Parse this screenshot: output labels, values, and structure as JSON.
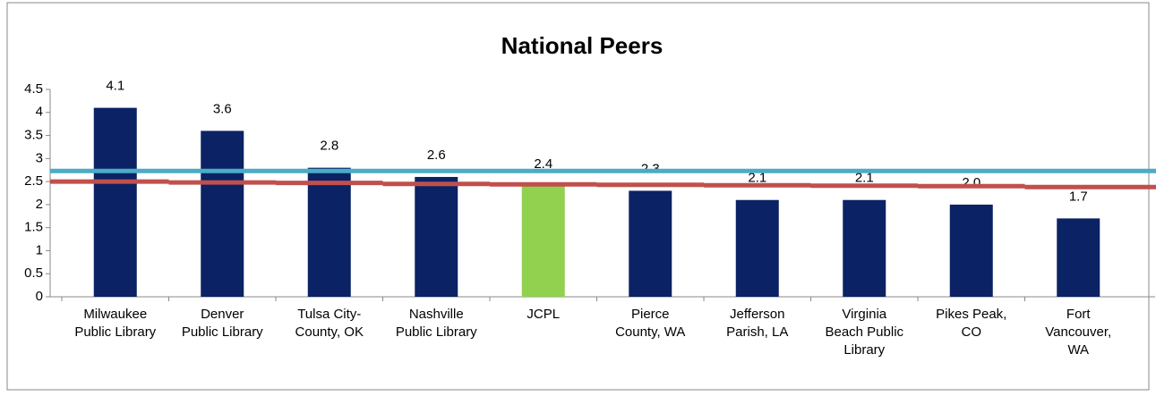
{
  "chart_data": {
    "type": "bar",
    "title": "National Peers",
    "categories": [
      [
        "Milwaukee",
        "Public Library"
      ],
      [
        "Denver",
        "Public Library"
      ],
      [
        "Tulsa City-",
        "County, OK"
      ],
      [
        "Nashville",
        "Public Library"
      ],
      [
        "JCPL"
      ],
      [
        "Pierce",
        "County, WA"
      ],
      [
        "Jefferson",
        "Parish, LA"
      ],
      [
        "Virginia",
        "Beach Public",
        "Library"
      ],
      [
        "Pikes Peak,",
        "CO"
      ],
      [
        "Fort",
        "Vancouver,",
        "WA"
      ]
    ],
    "values": [
      4.1,
      3.6,
      2.8,
      2.6,
      2.4,
      2.3,
      2.1,
      2.1,
      2.0,
      1.7
    ],
    "value_labels": [
      "4.1",
      "3.6",
      "2.8",
      "2.6",
      "2.4",
      "2.3",
      "2.1",
      "2.1",
      "2.0",
      "1.7"
    ],
    "colors": [
      "#0b2265",
      "#0b2265",
      "#0b2265",
      "#0b2265",
      "#92d050",
      "#0b2265",
      "#0b2265",
      "#0b2265",
      "#0b2265",
      "#0b2265"
    ],
    "lines": [
      {
        "color": "#4bacc6",
        "values": [
          2.73,
          2.73,
          2.73,
          2.73,
          2.73,
          2.73,
          2.73,
          2.73,
          2.73,
          2.73
        ]
      },
      {
        "color": "#c0504d",
        "values": [
          2.5,
          2.48,
          2.47,
          2.45,
          2.44,
          2.43,
          2.42,
          2.41,
          2.4,
          2.38
        ]
      }
    ],
    "ylim": [
      0,
      4.5
    ],
    "yticks": [
      0,
      0.5,
      1,
      1.5,
      2,
      2.5,
      3,
      3.5,
      4,
      4.5
    ]
  }
}
